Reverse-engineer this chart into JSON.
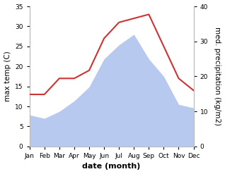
{
  "months": [
    "Jan",
    "Feb",
    "Mar",
    "Apr",
    "May",
    "Jun",
    "Jul",
    "Aug",
    "Sep",
    "Oct",
    "Nov",
    "Dec"
  ],
  "temperature": [
    13,
    13,
    17,
    17,
    19,
    27,
    31,
    32,
    33,
    25,
    17,
    14
  ],
  "precipitation": [
    9,
    8,
    10,
    13,
    17,
    25,
    29,
    32,
    25,
    20,
    12,
    11
  ],
  "temp_color": "#cc3333",
  "precip_color": "#b8c9f0",
  "ylabel_left": "max temp (C)",
  "ylabel_right": "med. precipitation (kg/m2)",
  "xlabel": "date (month)",
  "ylim_left": [
    0,
    35
  ],
  "ylim_right": [
    0,
    40
  ],
  "yticks_left": [
    0,
    5,
    10,
    15,
    20,
    25,
    30,
    35
  ],
  "yticks_right": [
    0,
    10,
    20,
    30,
    40
  ],
  "background_color": "#ffffff",
  "axis_fontsize": 7.5,
  "tick_fontsize": 6.5,
  "xlabel_fontsize": 8,
  "xlabel_fontweight": "bold"
}
